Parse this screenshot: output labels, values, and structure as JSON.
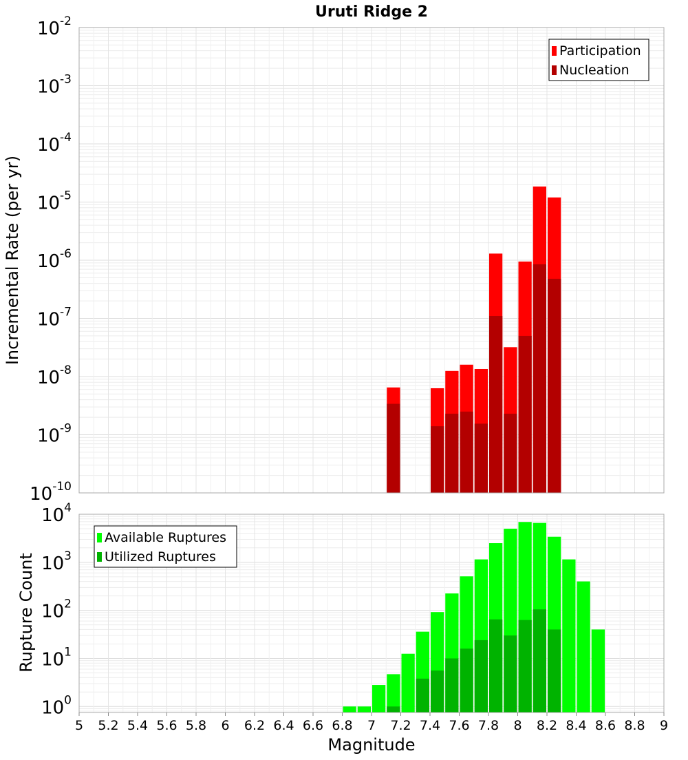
{
  "chart_data": [
    {
      "type": "bar",
      "title": "Uruti Ridge 2",
      "ylabel": "Incremental Rate (per yr)",
      "xlabel": "",
      "xlim": [
        5,
        9
      ],
      "ylim": [
        1e-10,
        0.01
      ],
      "yscale": "log",
      "grid": true,
      "legend_position": "top-right",
      "bar_width": 0.1,
      "series": [
        {
          "name": "Participation",
          "color": "#ff0000",
          "x": [
            7.15,
            7.45,
            7.55,
            7.65,
            7.75,
            7.85,
            7.95,
            8.05,
            8.15,
            8.25
          ],
          "values": [
            6.5e-09,
            6.3e-09,
            1.25e-08,
            1.6e-08,
            1.35e-08,
            1.3e-06,
            3.2e-08,
            9.5e-07,
            1.85e-05,
            1.2e-05
          ]
        },
        {
          "name": "Nucleation",
          "color": "#b30000",
          "x": [
            7.15,
            7.45,
            7.55,
            7.65,
            7.75,
            7.85,
            7.95,
            8.05,
            8.15,
            8.25
          ],
          "values": [
            3.4e-09,
            1.4e-09,
            2.3e-09,
            2.5e-09,
            1.55e-09,
            1.1e-07,
            2.3e-09,
            5e-08,
            8.5e-07,
            4.8e-07
          ]
        }
      ]
    },
    {
      "type": "bar",
      "title": "",
      "ylabel": "Rupture Count",
      "xlabel": "Magnitude",
      "xlim": [
        5,
        9
      ],
      "ylim": [
        0.75,
        10000.0
      ],
      "yscale": "log",
      "grid": true,
      "legend_position": "top-left",
      "bar_width": 0.1,
      "xticks": [
        "5",
        "5.2",
        "5.4",
        "5.6",
        "5.8",
        "6",
        "6.2",
        "6.4",
        "6.6",
        "6.8",
        "7",
        "7.2",
        "7.4",
        "7.6",
        "7.8",
        "8",
        "8.2",
        "8.4",
        "8.6",
        "8.8",
        "9"
      ],
      "series": [
        {
          "name": "Available Ruptures",
          "color": "#00ff00",
          "x": [
            6.85,
            6.95,
            7.05,
            7.15,
            7.25,
            7.35,
            7.45,
            7.55,
            7.65,
            7.75,
            7.85,
            7.95,
            8.05,
            8.15,
            8.25,
            8.35,
            8.45,
            8.55
          ],
          "values": [
            1,
            1,
            2.8,
            4.7,
            12.5,
            36,
            92,
            225,
            510,
            1150,
            2500,
            5000,
            6900,
            6600,
            3400,
            1150,
            400,
            40
          ]
        },
        {
          "name": "Utilized Ruptures",
          "color": "#00b300",
          "x": [
            7.15,
            7.35,
            7.45,
            7.55,
            7.65,
            7.75,
            7.85,
            7.95,
            8.05,
            8.15,
            8.25
          ],
          "values": [
            1,
            3.8,
            5.6,
            10,
            16,
            24,
            65,
            30,
            63,
            105,
            40
          ]
        }
      ]
    }
  ]
}
